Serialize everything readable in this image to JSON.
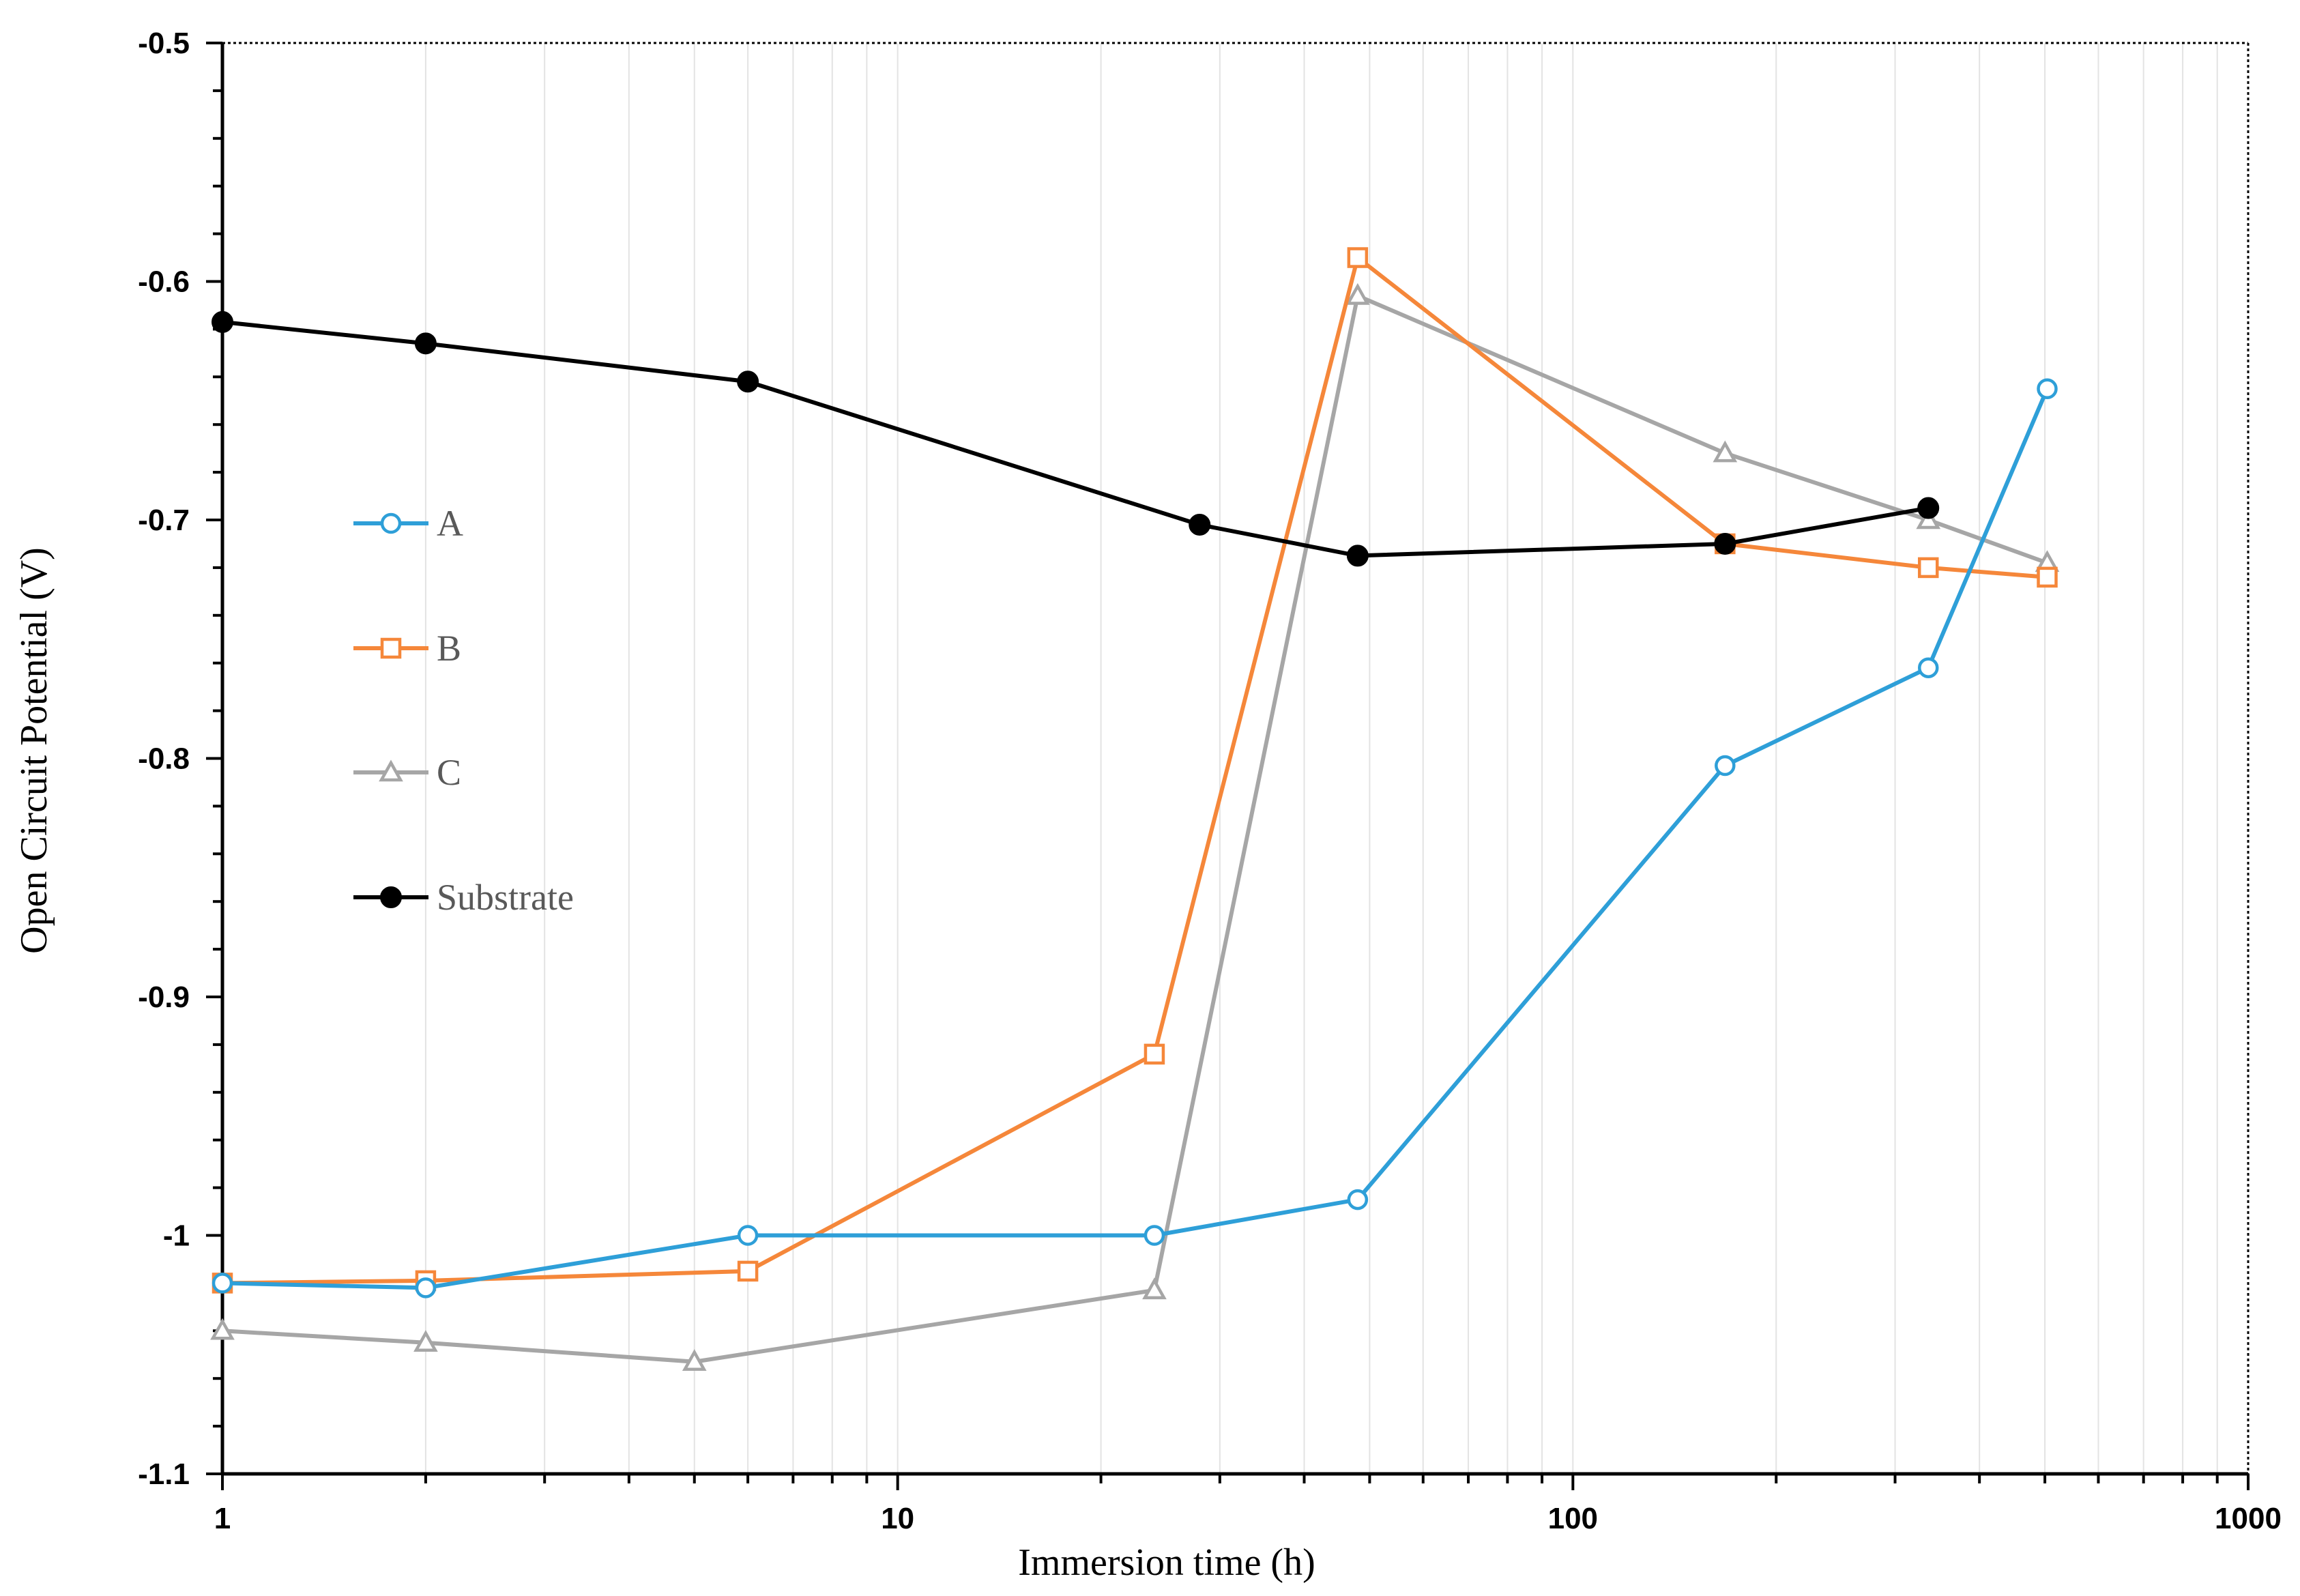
{
  "chart_data": {
    "type": "line",
    "title": "",
    "xlabel": "Immersion time (h)",
    "ylabel": "Open Circuit Potential (V)",
    "x_scale": "log",
    "xlim": [
      1,
      1000
    ],
    "ylim": [
      -1.1,
      -0.5
    ],
    "x_ticks": [
      "1",
      "10",
      "100",
      "1000"
    ],
    "y_ticks": [
      "-0.5",
      "-0.6",
      "-0.7",
      "-0.8",
      "-0.9",
      "-1",
      "-1.1"
    ],
    "grid": "vertical minor gridlines",
    "legend_position": "left-center",
    "series": [
      {
        "name": "A",
        "color": "#2E9FD8",
        "marker": "circle-open",
        "x": [
          1,
          2,
          6,
          24,
          48,
          168,
          336,
          504
        ],
        "y": [
          -1.02,
          -1.022,
          -1.0,
          -1.0,
          -0.985,
          -0.803,
          -0.762,
          -0.645
        ]
      },
      {
        "name": "B",
        "color": "#F5873A",
        "marker": "square-open",
        "x": [
          1,
          2,
          6,
          24,
          48,
          168,
          336,
          504
        ],
        "y": [
          -1.02,
          -1.019,
          -1.015,
          -0.924,
          -0.59,
          -0.71,
          -0.72,
          -0.724
        ]
      },
      {
        "name": "C",
        "color": "#A6A6A6",
        "marker": "triangle-open",
        "x": [
          1,
          2,
          5,
          24,
          48,
          168,
          336,
          504
        ],
        "y": [
          -1.04,
          -1.045,
          -1.053,
          -1.023,
          -0.606,
          -0.672,
          -0.7,
          -0.718
        ]
      },
      {
        "name": "Substrate",
        "color": "#000000",
        "marker": "circle-filled",
        "x": [
          1,
          2,
          6,
          28,
          48,
          168,
          336
        ],
        "y": [
          -0.617,
          -0.626,
          -0.642,
          -0.702,
          -0.715,
          -0.71,
          -0.695
        ]
      }
    ]
  }
}
